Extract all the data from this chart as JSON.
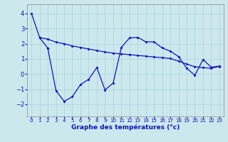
{
  "xlabel": "Graphe des températures (°c)",
  "background_color": "#cce8ed",
  "grid_color": "#b0d8df",
  "line_color": "#1111bb",
  "x_ticks": [
    0,
    1,
    2,
    3,
    4,
    5,
    6,
    7,
    8,
    9,
    10,
    11,
    12,
    13,
    14,
    15,
    16,
    17,
    18,
    19,
    20,
    21,
    22,
    23
  ],
  "y_ticks": [
    -2,
    -1,
    0,
    1,
    2,
    3,
    4
  ],
  "ylim": [
    -2.8,
    4.6
  ],
  "xlim": [
    -0.5,
    23.5
  ],
  "series1_x": [
    0,
    1,
    2
  ],
  "series1_y": [
    4.0,
    2.4,
    1.7
  ],
  "series2_x": [
    1,
    2,
    3,
    4,
    5,
    6,
    7,
    8,
    9,
    10,
    11,
    12,
    13,
    14,
    15,
    16,
    17,
    18,
    19,
    20,
    21,
    22,
    23
  ],
  "series2_y": [
    2.4,
    2.3,
    2.1,
    2.0,
    1.85,
    1.75,
    1.65,
    1.55,
    1.45,
    1.38,
    1.32,
    1.28,
    1.22,
    1.18,
    1.12,
    1.08,
    1.02,
    0.85,
    0.65,
    0.48,
    0.42,
    0.38,
    0.5
  ],
  "series3_x": [
    2,
    3,
    4,
    5,
    6,
    7,
    8,
    9,
    10,
    11,
    12,
    13,
    14,
    15,
    16,
    17,
    18,
    19,
    20,
    21,
    22,
    23
  ],
  "series3_y": [
    1.7,
    -1.1,
    -1.8,
    -1.5,
    -0.7,
    -0.35,
    0.42,
    -1.05,
    -0.6,
    1.75,
    2.38,
    2.42,
    2.12,
    2.12,
    1.72,
    1.5,
    1.15,
    0.38,
    -0.08,
    0.95,
    0.45,
    0.52
  ]
}
